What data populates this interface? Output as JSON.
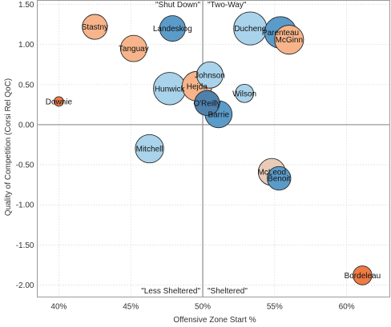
{
  "chart_data": {
    "type": "scatter",
    "xlabel": "Offensive Zone Start %",
    "ylabel": "Quality of Competition (Corsi Rel QoC)",
    "xlim": [
      38.5,
      63
    ],
    "ylim": [
      -2.15,
      1.55
    ],
    "x_ticks": [
      40,
      45,
      50,
      55,
      60
    ],
    "x_tick_labels": [
      "40%",
      "45%",
      "50%",
      "55%",
      "60%"
    ],
    "y_ticks": [
      1.5,
      1.0,
      0.5,
      0.0,
      -0.5,
      -1.0,
      -1.5,
      -2.0
    ],
    "y_tick_labels": [
      "1.50",
      "1.00",
      "0.50",
      "0.00",
      "-0.50",
      "-1.00",
      "-1.50",
      "-2.00"
    ],
    "grid": true,
    "reference_lines": {
      "x": 50,
      "y": 0
    },
    "quadrant_labels": {
      "top_left": "\"Shut Down\"",
      "top_right": "\"Two-Way\"",
      "bottom_left": "\"Less Sheltered\"",
      "bottom_right": "\"Sheltered\""
    },
    "points": [
      {
        "label": "Stastny",
        "x": 42.5,
        "y": 1.22,
        "size": 0.6,
        "color": "#f7b48a"
      },
      {
        "label": "Landeskog",
        "x": 47.9,
        "y": 1.2,
        "size": 0.62,
        "color": "#5b9bc9"
      },
      {
        "label": "Tanguay",
        "x": 45.2,
        "y": 0.95,
        "size": 0.64,
        "color": "#f7b48a"
      },
      {
        "label": "Duchene",
        "x": 53.3,
        "y": 1.2,
        "size": 0.84,
        "color": "#a9d3ea"
      },
      {
        "label": "Parenteau",
        "x": 55.4,
        "y": 1.15,
        "size": 0.8,
        "color": "#5b9bc9"
      },
      {
        "label": "McGinn",
        "x": 56.0,
        "y": 1.06,
        "size": 0.72,
        "color": "#f7b48a"
      },
      {
        "label": "Johnson",
        "x": 50.5,
        "y": 0.62,
        "size": 0.64,
        "color": "#a9d3ea"
      },
      {
        "label": "Hunwick",
        "x": 47.7,
        "y": 0.45,
        "size": 0.82,
        "color": "#a9d3ea"
      },
      {
        "label": "Hejda",
        "x": 49.6,
        "y": 0.48,
        "size": 0.74,
        "color": "#f7b48a"
      },
      {
        "label": "Wilson",
        "x": 52.9,
        "y": 0.39,
        "size": 0.4,
        "color": "#a9d3ea"
      },
      {
        "label": "O'Reilly",
        "x": 50.3,
        "y": 0.27,
        "size": 0.6,
        "color": "#4f81ad"
      },
      {
        "label": "Barrie",
        "x": 51.1,
        "y": 0.13,
        "size": 0.66,
        "color": "#5b9bc9"
      },
      {
        "label": "Downie",
        "x": 40.0,
        "y": 0.29,
        "size": 0.14,
        "color": "#ef7b45"
      },
      {
        "label": "Mitchell",
        "x": 46.3,
        "y": -0.3,
        "size": 0.7,
        "color": "#a9d3ea"
      },
      {
        "label": "McLeod",
        "x": 54.8,
        "y": -0.59,
        "size": 0.66,
        "color": "#e8ccb8"
      },
      {
        "label": "Benoit",
        "x": 55.3,
        "y": -0.67,
        "size": 0.56,
        "color": "#5b9bc9"
      },
      {
        "label": "Bordeleau",
        "x": 61.1,
        "y": -1.88,
        "size": 0.42,
        "color": "#ef7b45"
      }
    ]
  }
}
